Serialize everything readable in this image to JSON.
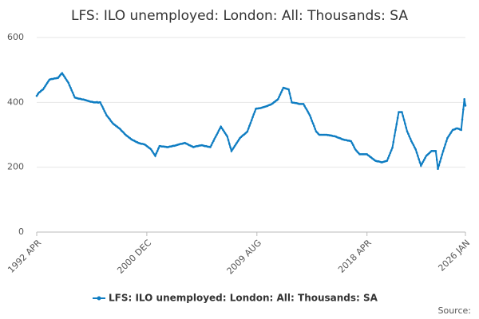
{
  "chart_data": {
    "type": "line",
    "title": "LFS: ILO unemployed: London: All: Thousands: SA",
    "source": "Source:",
    "ylim": [
      0,
      600
    ],
    "yticks": [
      0,
      200,
      400,
      600
    ],
    "grid": true,
    "categories": [
      "1992 APR",
      null,
      null,
      null,
      null,
      null,
      null,
      null,
      null,
      null,
      null,
      null,
      null,
      null,
      null,
      null,
      null,
      null,
      null,
      null,
      null,
      null,
      null,
      null,
      null,
      null,
      null,
      null,
      null,
      null,
      null,
      null,
      null,
      null,
      null,
      null,
      null,
      null,
      null,
      null,
      null,
      null,
      null,
      null,
      null,
      null,
      null,
      null,
      null,
      null,
      null,
      null,
      null,
      null,
      null,
      null,
      null,
      null,
      null,
      null,
      null,
      null,
      null,
      null,
      null,
      null,
      null,
      null,
      null,
      null,
      null,
      null,
      null,
      null,
      null,
      null,
      null,
      null,
      null,
      null,
      null,
      null,
      null,
      null,
      null,
      null,
      null,
      null,
      null,
      null,
      null,
      null,
      null,
      null,
      null,
      null,
      null,
      null,
      null,
      null,
      null,
      null,
      null,
      null,
      "2000 DEC",
      null,
      null,
      null,
      null,
      null,
      null,
      null,
      null,
      null,
      null,
      null,
      null,
      null,
      null,
      null,
      null,
      null,
      null,
      null,
      null,
      null,
      null,
      null,
      null,
      null,
      null,
      null,
      null,
      null,
      null,
      null,
      null,
      null,
      null,
      null,
      null,
      null,
      null,
      null,
      null,
      null,
      null,
      null,
      null,
      null,
      null,
      null,
      null,
      null,
      null,
      null,
      null,
      null,
      null,
      null,
      null,
      null,
      null,
      null,
      null,
      null,
      null,
      null,
      null,
      null,
      null,
      null,
      null,
      null,
      null,
      null,
      null,
      null,
      null,
      null,
      null,
      null,
      null,
      null,
      null,
      null,
      null,
      null,
      null,
      null,
      null,
      null,
      null,
      null,
      null,
      null,
      null,
      null,
      null,
      null,
      null,
      null,
      null,
      null,
      null,
      null,
      null,
      null,
      "2009 AUG",
      null,
      null,
      null,
      null,
      null,
      null,
      null,
      null,
      null,
      null,
      null,
      null,
      null,
      null,
      null,
      null,
      null,
      null,
      null,
      null,
      null,
      null,
      null,
      null,
      null,
      null,
      null,
      null,
      null,
      null,
      null,
      null,
      null,
      null,
      null,
      null,
      null,
      null,
      null,
      null,
      null,
      null,
      null,
      null,
      null,
      null,
      null,
      null,
      null,
      null,
      null,
      null,
      null,
      null,
      null,
      null,
      null,
      null,
      null,
      null,
      null,
      null,
      null,
      null,
      null,
      null,
      null,
      null,
      null,
      null,
      null,
      null,
      null,
      null,
      null,
      null,
      null,
      null,
      null,
      null,
      null,
      null,
      null,
      null,
      null,
      null,
      null,
      null,
      null,
      null,
      null,
      null,
      null,
      null,
      null,
      null,
      null,
      null,
      null,
      null,
      null,
      null,
      null,
      "2018 APR",
      null,
      null,
      null,
      null,
      null,
      null,
      null,
      null,
      null,
      null,
      null,
      null,
      null,
      null,
      null,
      null,
      null,
      null,
      null,
      null,
      null,
      null,
      null,
      null,
      null,
      null,
      null,
      null,
      null,
      null,
      null,
      null,
      null,
      null,
      null,
      null,
      null,
      null,
      null,
      null,
      null,
      null,
      null,
      null,
      null,
      null,
      null,
      null,
      null,
      null,
      null,
      null,
      null,
      null,
      null,
      null,
      null,
      null,
      null,
      null,
      null,
      null,
      null,
      null,
      null,
      null,
      null,
      null,
      null,
      null,
      null,
      null,
      null,
      null,
      null,
      null,
      null,
      null,
      null,
      null,
      null,
      null,
      null,
      null,
      null,
      null,
      null,
      null,
      null,
      null,
      null,
      null,
      "2026 JAN"
    ],
    "series": [
      {
        "name": "LFS: ILO unemployed: London: All: Thousands: SA",
        "color": "#0f7dc2",
        "values": [
          420,
          425,
          430,
          432,
          435,
          438,
          440,
          445,
          450,
          455,
          460,
          465,
          470,
          471,
          472,
          472,
          473,
          474,
          474,
          475,
          475,
          479,
          483,
          487,
          490,
          485,
          480,
          475,
          470,
          465,
          460,
          452,
          445,
          437,
          430,
          422,
          415,
          414,
          413,
          412,
          411,
          411,
          410,
          409,
          409,
          408,
          407,
          406,
          405,
          404,
          403,
          402,
          402,
          401,
          400,
          400,
          400,
          401,
          399,
          400,
          400,
          393,
          387,
          380,
          373,
          367,
          360,
          356,
          352,
          348,
          343,
          339,
          335,
          332,
          330,
          327,
          325,
          322,
          320,
          317,
          313,
          310,
          307,
          303,
          300,
          297,
          295,
          292,
          290,
          287,
          285,
          283,
          282,
          280,
          278,
          277,
          275,
          274,
          273,
          272,
          272,
          271,
          270,
          268,
          265,
          263,
          260,
          258,
          255,
          250,
          245,
          240,
          235,
          243,
          250,
          258,
          265,
          265,
          264,
          264,
          264,
          263,
          263,
          262,
          262,
          263,
          264,
          264,
          265,
          266,
          266,
          267,
          268,
          269,
          270,
          271,
          272,
          272,
          273,
          274,
          275,
          273,
          272,
          270,
          268,
          267,
          265,
          264,
          262,
          263,
          264,
          265,
          265,
          266,
          267,
          267,
          268,
          267,
          266,
          265,
          265,
          264,
          263,
          263,
          262,
          268,
          275,
          281,
          288,
          294,
          300,
          306,
          313,
          319,
          325,
          320,
          315,
          310,
          305,
          300,
          295,
          284,
          272,
          261,
          250,
          255,
          260,
          265,
          270,
          275,
          280,
          285,
          290,
          293,
          296,
          299,
          301,
          304,
          307,
          310,
          319,
          328,
          336,
          345,
          354,
          363,
          371,
          380,
          381,
          381,
          382,
          382,
          383,
          384,
          385,
          386,
          387,
          388,
          389,
          391,
          392,
          393,
          395,
          397,
          400,
          402,
          405,
          407,
          410,
          417,
          424,
          431,
          438,
          445,
          444,
          443,
          442,
          441,
          440,
          427,
          413,
          400,
          399,
          399,
          398,
          398,
          397,
          396,
          395,
          395,
          395,
          395,
          395,
          389,
          383,
          378,
          372,
          366,
          360,
          352,
          343,
          335,
          327,
          318,
          310,
          307,
          303,
          300,
          300,
          300,
          300,
          300,
          300,
          300,
          300,
          299,
          299,
          298,
          298,
          297,
          296,
          296,
          295,
          294,
          292,
          291,
          290,
          289,
          287,
          286,
          285,
          284,
          284,
          283,
          282,
          282,
          281,
          280,
          274,
          268,
          261,
          255,
          251,
          247,
          244,
          240,
          240,
          240,
          240,
          240,
          240,
          240,
          240,
          237,
          235,
          232,
          230,
          227,
          225,
          222,
          220,
          219,
          218,
          218,
          217,
          216,
          215,
          216,
          217,
          218,
          219,
          220,
          228,
          236,
          244,
          252,
          260,
          278,
          297,
          315,
          333,
          352,
          370,
          370,
          370,
          370,
          358,
          346,
          334,
          322,
          310,
          303,
          295,
          288,
          280,
          274,
          268,
          261,
          255,
          245,
          235,
          225,
          215,
          205,
          211,
          217,
          223,
          229,
          235,
          238,
          241,
          244,
          247,
          250,
          250,
          250,
          250,
          250,
          223,
          195,
          206,
          217,
          228,
          239,
          250,
          260,
          270,
          280,
          290,
          295,
          300,
          305,
          310,
          315,
          316,
          317,
          319,
          320,
          319,
          318,
          316,
          315,
          347,
          378,
          410,
          390
        ]
      }
    ]
  }
}
